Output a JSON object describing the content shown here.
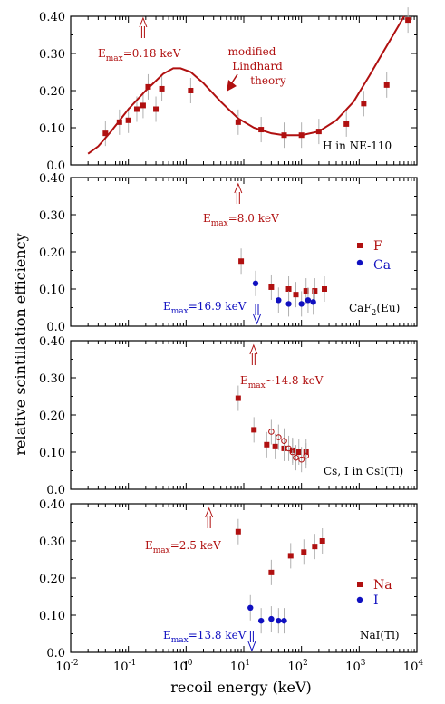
{
  "ylabel": "relative scintillation efficiency",
  "xlabel": "recoil energy (keV)",
  "colors": {
    "red": "#b01010",
    "blue": "#1010c0",
    "light": "#b0b0b0"
  },
  "chart_data": [
    {
      "type": "scatter",
      "panel_label": "H in NE-110",
      "xscale": "log",
      "xlim": [
        0.01,
        10000
      ],
      "ylim": [
        0,
        0.4
      ],
      "yticks": [
        "0.0",
        "0.10",
        "0.20",
        "0.30",
        "0.40"
      ],
      "series": [
        {
          "color": "#b01010",
          "marker": "square",
          "x": [
            0.04,
            0.07,
            0.1,
            0.14,
            0.18,
            0.22,
            0.3,
            0.38,
            1.2,
            8,
            20,
            50,
            100,
            200,
            600,
            1200,
            3000,
            7000
          ],
          "y": [
            0.085,
            0.115,
            0.12,
            0.15,
            0.16,
            0.21,
            0.15,
            0.205,
            0.2,
            0.115,
            0.095,
            0.08,
            0.08,
            0.09,
            0.11,
            0.165,
            0.215,
            0.39
          ]
        },
        {
          "color": "#b01010",
          "type": "line",
          "name": "modified Lindhard theory",
          "x": [
            0.02,
            0.03,
            0.05,
            0.1,
            0.2,
            0.4,
            0.6,
            0.8,
            1.2,
            2,
            4,
            8,
            15,
            30,
            50,
            100,
            200,
            400,
            800,
            1500,
            3000,
            6000
          ],
          "y": [
            0.03,
            0.05,
            0.09,
            0.15,
            0.2,
            0.245,
            0.26,
            0.26,
            0.25,
            0.22,
            0.17,
            0.125,
            0.1,
            0.085,
            0.08,
            0.08,
            0.09,
            0.12,
            0.17,
            0.24,
            0.32,
            0.4
          ]
        }
      ],
      "annotations": [
        {
          "text": "E",
          "sub": "max",
          "rest": "=0.18 keV",
          "color": "#b01010"
        },
        {
          "text": "modified",
          "color": "#b01010"
        },
        {
          "text": "Lindhard",
          "color": "#b01010"
        },
        {
          "text": "theory",
          "color": "#b01010"
        }
      ]
    },
    {
      "type": "scatter",
      "panel_label": "CaF",
      "panel_label_sub": "2",
      "panel_label_rest": "(Eu)",
      "xscale": "log",
      "xlim": [
        0.01,
        10000
      ],
      "ylim": [
        0,
        0.4
      ],
      "yticks": [
        "0.0",
        "0.10",
        "0.20",
        "0.30",
        "0.40"
      ],
      "legend": [
        "F",
        "Ca"
      ],
      "series": [
        {
          "name": "F",
          "color": "#b01010",
          "marker": "square",
          "x": [
            9,
            30,
            60,
            80,
            120,
            170,
            250
          ],
          "y": [
            0.175,
            0.105,
            0.1,
            0.085,
            0.095,
            0.095,
            0.1
          ]
        },
        {
          "name": "Ca",
          "color": "#1010c0",
          "marker": "circle",
          "x": [
            16,
            40,
            60,
            100,
            130,
            160
          ],
          "y": [
            0.115,
            0.07,
            0.06,
            0.06,
            0.07,
            0.065
          ]
        }
      ],
      "annotations": [
        {
          "text": "E",
          "sub": "max",
          "rest": "=8.0 keV",
          "color": "#b01010"
        },
        {
          "text": "E",
          "sub": "max",
          "rest": "=16.9 keV",
          "color": "#1010c0"
        }
      ]
    },
    {
      "type": "scatter",
      "panel_label": "Cs, I in CsI(Tl)",
      "xscale": "log",
      "xlim": [
        0.01,
        10000
      ],
      "ylim": [
        0,
        0.4
      ],
      "yticks": [
        "0.0",
        "0.10",
        "0.20",
        "0.30",
        "0.40"
      ],
      "series": [
        {
          "color": "#b01010",
          "marker": "square",
          "x": [
            8,
            15,
            25,
            35,
            50,
            70,
            90,
            120
          ],
          "y": [
            0.245,
            0.16,
            0.12,
            0.115,
            0.11,
            0.105,
            0.1,
            0.1
          ]
        },
        {
          "color": "#b01010",
          "marker": "open-circle",
          "x": [
            30,
            40,
            50,
            60,
            70,
            80,
            100,
            120
          ],
          "y": [
            0.155,
            0.14,
            0.13,
            0.11,
            0.1,
            0.085,
            0.08,
            0.09
          ]
        }
      ],
      "annotations": [
        {
          "text": "E",
          "sub": "max",
          "rest": "~14.8 keV",
          "color": "#b01010"
        }
      ]
    },
    {
      "type": "scatter",
      "panel_label": "NaI(Tl)",
      "xscale": "log",
      "xlim": [
        0.01,
        10000
      ],
      "ylim": [
        0,
        0.4
      ],
      "yticks": [
        "0.0",
        "0.10",
        "0.20",
        "0.30",
        "0.40"
      ],
      "xticks": [
        "10",
        "10",
        "10",
        "1",
        "10",
        "10",
        "10",
        "10",
        "10"
      ],
      "xtick_exps": [
        "-2",
        "-1",
        "0",
        "",
        "1",
        "2",
        "3",
        "4",
        ""
      ],
      "legend": [
        "Na",
        "I"
      ],
      "series": [
        {
          "name": "Na",
          "color": "#b01010",
          "marker": "square",
          "x": [
            8,
            30,
            65,
            110,
            170,
            230
          ],
          "y": [
            0.325,
            0.215,
            0.26,
            0.27,
            0.285,
            0.3
          ]
        },
        {
          "name": "I",
          "color": "#1010c0",
          "marker": "circle",
          "x": [
            13,
            20,
            30,
            40,
            50
          ],
          "y": [
            0.12,
            0.085,
            0.09,
            0.085,
            0.085
          ]
        }
      ],
      "annotations": [
        {
          "text": "E",
          "sub": "max",
          "rest": "=2.5 keV",
          "color": "#b01010"
        },
        {
          "text": "E",
          "sub": "max",
          "rest": "=13.8 keV",
          "color": "#1010c0"
        }
      ]
    }
  ]
}
